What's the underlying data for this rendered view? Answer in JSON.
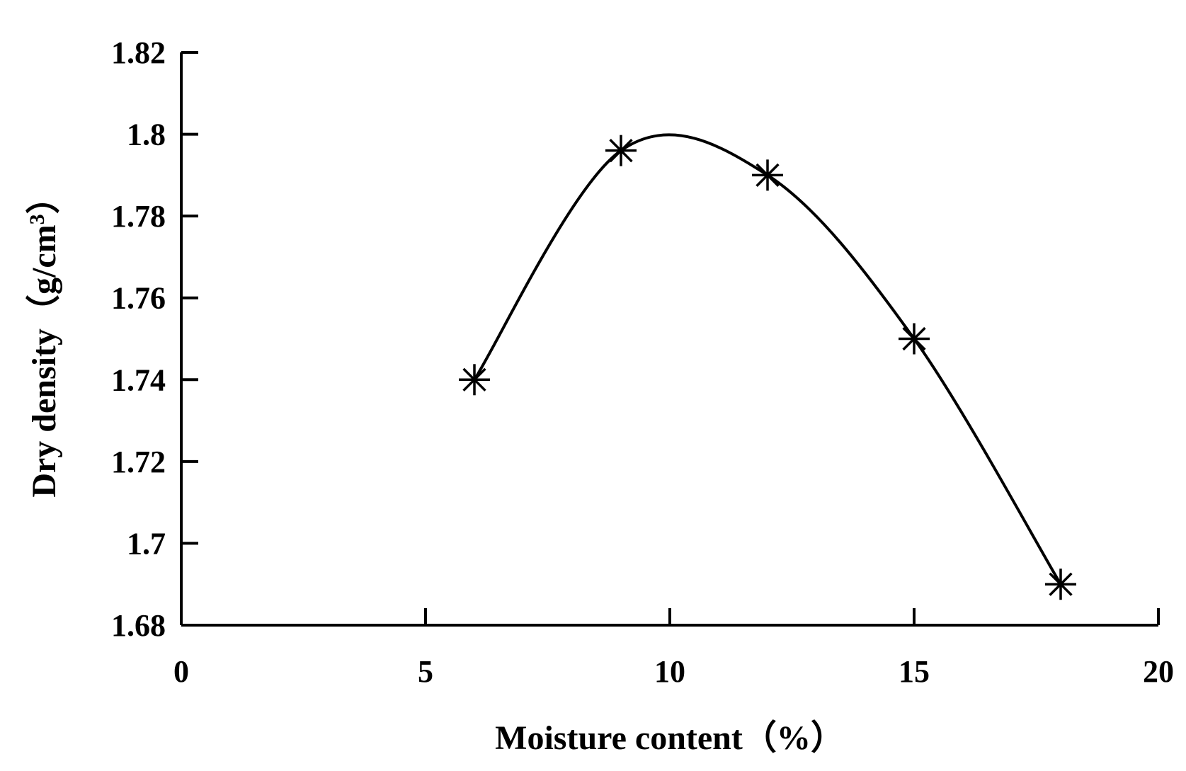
{
  "chart_data": {
    "type": "line",
    "smooth": true,
    "marker": "asterisk",
    "grid": false,
    "legend": "none",
    "xlabel": "Moisture content（%）",
    "ylabel_main": "Dry density（g/cm",
    "ylabel_sup": "3",
    "ylabel_end": "）",
    "xlim": [
      0,
      20
    ],
    "ylim": [
      1.68,
      1.82
    ],
    "xticks": [
      "0",
      "5",
      "10",
      "15",
      "20"
    ],
    "yticks": [
      "1.68",
      "1.7",
      "1.72",
      "1.74",
      "1.76",
      "1.78",
      "1.8",
      "1.82"
    ],
    "series": [
      {
        "x": [
          6,
          9,
          12,
          15,
          18
        ],
        "y": [
          1.74,
          1.796,
          1.79,
          1.75,
          1.69
        ]
      }
    ],
    "colors": {
      "line": "#000000",
      "axis": "#000000"
    }
  }
}
